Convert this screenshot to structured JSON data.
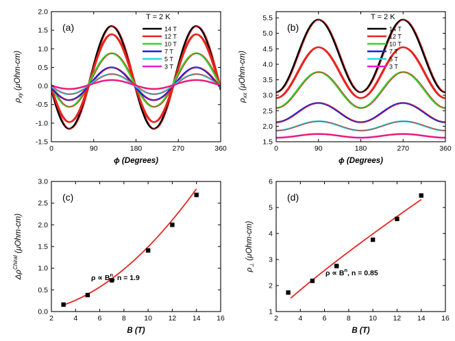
{
  "chart_data": [
    {
      "id": "a",
      "type": "line",
      "panel_label": "(a)",
      "temperature_label": "T = 2 K",
      "xlabel_sym": "ϕ",
      "xlabel_text": " (Degrees)",
      "ylabel_sym": "ρ",
      "ylabel_sub": "xy",
      "ylabel_text": " (μOhm-cm)",
      "xlim": [
        0,
        360
      ],
      "ylim": [
        -1.5,
        2.0
      ],
      "xticks": [
        0,
        90,
        180,
        270,
        360
      ],
      "xtick_labels": [
        "0",
        "90",
        "180",
        "270",
        "360"
      ],
      "yticks": [
        -1.5,
        -1.0,
        -0.5,
        0.0,
        0.5,
        1.0,
        1.5,
        2.0
      ],
      "ytick_labels": [
        "-1.5",
        "-1.0",
        "-0.5",
        "0.0",
        "0.5",
        "1.0",
        "1.5",
        "2.0"
      ],
      "legend_position": "top-right",
      "model": "offset + amp * cos(2 * (phi - phase))",
      "fit_color": "#e8231f",
      "series": [
        {
          "name": "14 T",
          "color": "#000000",
          "offset": 0.23,
          "amp": 1.38,
          "phase": 128
        },
        {
          "name": "12 T",
          "color": "#e8231f",
          "offset": 0.21,
          "amp": 1.18,
          "phase": 128
        },
        {
          "name": "10 T",
          "color": "#2fd62f",
          "offset": 0.16,
          "amp": 0.72,
          "phase": 128
        },
        {
          "name": "7 T",
          "color": "#1f1fd6",
          "offset": 0.06,
          "amp": 0.44,
          "phase": 128
        },
        {
          "name": "5 T",
          "color": "#27d8e0",
          "offset": 0.05,
          "amp": 0.27,
          "phase": 128
        },
        {
          "name": "3 T",
          "color": "#ee1ad0",
          "offset": 0.04,
          "amp": 0.12,
          "phase": 128
        }
      ]
    },
    {
      "id": "b",
      "type": "line",
      "panel_label": "(b)",
      "temperature_label": "T = 2 K",
      "xlabel_sym": "ϕ",
      "xlabel_text": " (Degrees)",
      "ylabel_sym": "ρ",
      "ylabel_sub": "xx",
      "ylabel_text": " (μOhm-cm)",
      "xlim": [
        0,
        360
      ],
      "ylim": [
        1.5,
        5.7
      ],
      "xticks": [
        0,
        90,
        180,
        270,
        360
      ],
      "xtick_labels": [
        "0",
        "90",
        "180",
        "270",
        "360"
      ],
      "yticks": [
        1.5,
        2.0,
        2.5,
        3.0,
        3.5,
        4.0,
        4.5,
        5.0,
        5.5
      ],
      "ytick_labels": [
        "1.5",
        "2.0",
        "2.5",
        "3.0",
        "3.5",
        "4.0",
        "4.5",
        "5.0",
        "5.5"
      ],
      "legend_position": "top-right",
      "model": "offset - amp * cos(2 * phi)",
      "fit_color": "#e8231f",
      "series": [
        {
          "name": "14 T",
          "color": "#000000",
          "offset": 4.27,
          "amp": 1.17
        },
        {
          "name": "12 T",
          "color": "#e8231f",
          "offset": 3.73,
          "amp": 0.82
        },
        {
          "name": "10 T",
          "color": "#2fd62f",
          "offset": 3.17,
          "amp": 0.58
        },
        {
          "name": "7 T",
          "color": "#1f1fd6",
          "offset": 2.44,
          "amp": 0.31
        },
        {
          "name": "5 T",
          "color": "#27d8e0",
          "offset": 2.01,
          "amp": 0.15
        },
        {
          "name": "3 T",
          "color": "#ee1ad0",
          "offset": 1.69,
          "amp": 0.06
        }
      ]
    },
    {
      "id": "c",
      "type": "scatter",
      "panel_label": "(c)",
      "xlabel": "B (T)",
      "ylabel_sym": "Δρ",
      "ylabel_sup": "Chiral",
      "ylabel_text": " (μOhm-cm)",
      "xlim": [
        2,
        16
      ],
      "ylim": [
        0.0,
        3.0
      ],
      "xticks": [
        2,
        4,
        6,
        8,
        10,
        12,
        14,
        16
      ],
      "xtick_labels": [
        "2",
        "4",
        "6",
        "8",
        "10",
        "12",
        "14",
        "16"
      ],
      "yticks": [
        0.0,
        0.5,
        1.0,
        1.5,
        2.0,
        2.5,
        3.0
      ],
      "ytick_labels": [
        "0.0",
        "0.5",
        "1.0",
        "1.5",
        "2.0",
        "2.5",
        "3.0"
      ],
      "x": [
        3,
        5,
        7,
        10,
        12,
        14
      ],
      "y": [
        0.16,
        0.38,
        0.72,
        1.41,
        2.0,
        2.69
      ],
      "fit": {
        "kind": "power",
        "a": 0.0188,
        "n": 1.9,
        "x_range": [
          3,
          14
        ],
        "color": "#e8231f"
      },
      "annotation_pre": "ρ ∝ B",
      "annotation_exp": "n",
      "annotation_post": ", n = 1.9"
    },
    {
      "id": "d",
      "type": "scatter",
      "panel_label": "(d)",
      "xlabel": "B (T)",
      "ylabel_sym": "ρ",
      "ylabel_sub": "⊥",
      "ylabel_text": " (μOhm-cm)",
      "xlim": [
        2,
        16
      ],
      "ylim": [
        1,
        6
      ],
      "xticks": [
        2,
        4,
        6,
        8,
        10,
        12,
        14,
        16
      ],
      "xtick_labels": [
        "2",
        "4",
        "6",
        "8",
        "10",
        "12",
        "14",
        "16"
      ],
      "yticks": [
        1,
        2,
        3,
        4,
        5,
        6
      ],
      "ytick_labels": [
        "1",
        "2",
        "3",
        "4",
        "5",
        "6"
      ],
      "x": [
        3,
        5,
        7,
        10,
        12,
        14
      ],
      "y": [
        1.73,
        2.18,
        2.75,
        3.76,
        4.56,
        5.46
      ],
      "fit": {
        "kind": "power",
        "a": 0.563,
        "n": 0.85,
        "x_range": [
          3.2,
          14
        ],
        "color": "#e8231f"
      },
      "annotation_pre": "ρ ∝ B",
      "annotation_exp": "n",
      "annotation_post": ", n = 0.85"
    }
  ]
}
